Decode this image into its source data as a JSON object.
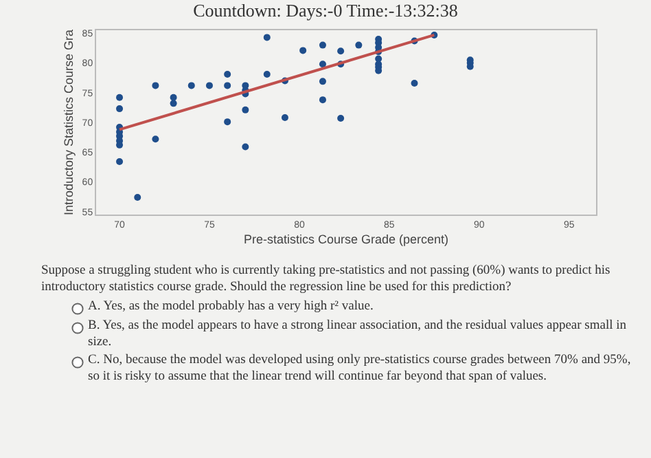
{
  "chart_data": {
    "type": "scatter",
    "title": "Countdown: Days:-0 Time:-13:32:38",
    "xlabel": "Pre-statistics Course Grade (percent)",
    "ylabel": "Introductory Statistics Course Gra",
    "x": [
      70,
      70,
      70,
      70,
      70,
      70,
      70,
      70,
      71,
      72,
      72,
      73,
      73,
      74,
      75,
      76,
      76,
      76,
      77,
      77,
      77,
      77,
      77,
      78.2,
      78.2,
      79.2,
      79.2,
      80.2,
      81.3,
      81.3,
      81.3,
      81.3,
      82.3,
      82.3,
      82.3,
      83.3,
      84.4,
      84.4,
      84.4,
      84.4,
      84.4,
      84.4,
      84.4,
      84.4,
      86.4,
      86.4,
      87.5,
      89.5,
      89.5,
      89.5
    ],
    "series": [
      {
        "color": "#1f4e8c",
        "marker": "circle",
        "values": [
          74.2,
          72.3,
          69.2,
          68.4,
          67.7,
          66.9,
          66.2,
          63.4,
          57.4,
          76.2,
          67.2,
          74.2,
          73.2,
          76.2,
          76.2,
          78.1,
          76.2,
          70.1,
          76.2,
          75.4,
          74.8,
          72.1,
          65.9,
          84.3,
          78.1,
          77,
          70.8,
          82.1,
          83,
          79.8,
          76.9,
          73.8,
          82,
          79.8,
          70.7,
          83,
          84,
          83.4,
          82.6,
          81.9,
          80.7,
          79.8,
          79.3,
          78.7,
          83.7,
          76.6,
          84.7,
          80.5,
          80,
          79.4
        ]
      },
      {
        "type": "line",
        "color": "#c0504d",
        "x": [
          70,
          87.5
        ],
        "values": [
          68.8,
          84.7
        ]
      }
    ],
    "xlim": [
      68.7,
      96.5
    ],
    "xticks": [
      70,
      75,
      80,
      85,
      90,
      95
    ],
    "ylim": [
      54.5,
      85.5
    ],
    "yticks": [
      55,
      60,
      65,
      70,
      75,
      80,
      85
    ],
    "grid": false,
    "annotations": [
      "Suppose a struggling student who is currently taking pre-statistics and not passing (60%) wants to predict his introductory statistics course grade. Should the regression line be used for this prediction?",
      "A. Yes, as the model probably has a very high r² value.",
      "B. Yes, as the model appears to have a strong linear association, and the residual values appear small in size.",
      "C. No, because the model was developed using only pre-statistics course grades between 70% and 95%, so it is risky to assume that the linear trend will continue far beyond that span of values."
    ]
  }
}
